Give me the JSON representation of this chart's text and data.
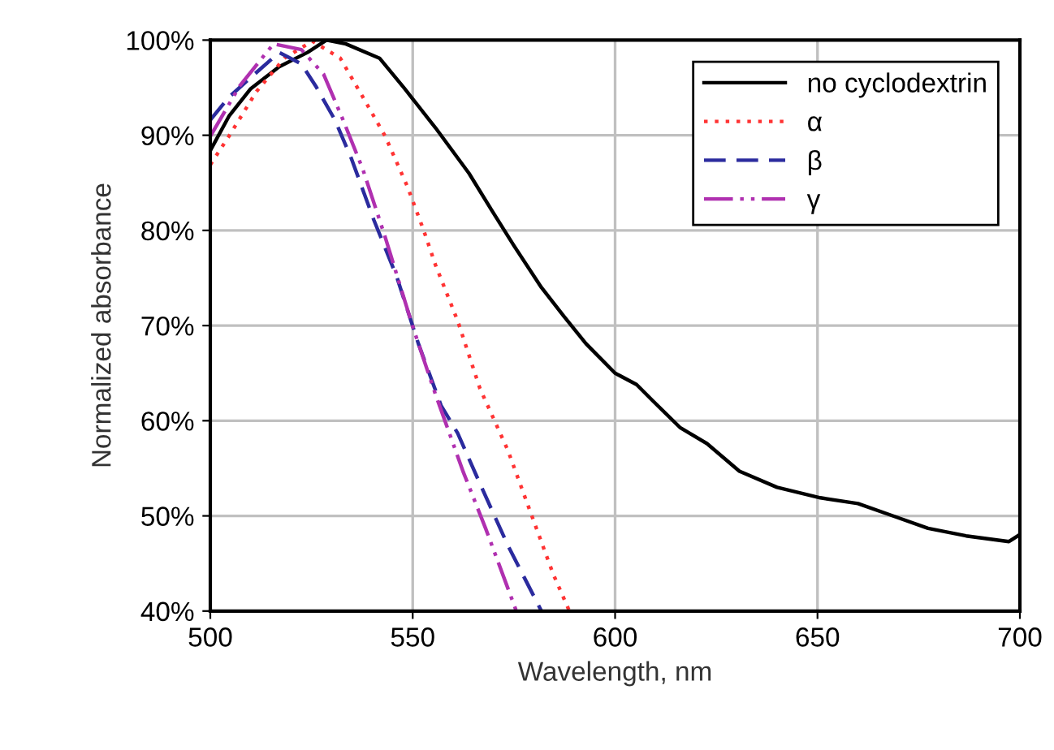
{
  "chart_data": {
    "type": "line",
    "xlabel": "Wavelength, nm",
    "ylabel": "Normalized absorbance",
    "xlim": [
      500,
      700
    ],
    "xticks": [
      500,
      550,
      600,
      650,
      700
    ],
    "ylim": [
      40,
      100
    ],
    "yticks": [
      {
        "value": 40,
        "label": "40%"
      },
      {
        "value": 50,
        "label": "50%"
      },
      {
        "value": 60,
        "label": "60%"
      },
      {
        "value": 70,
        "label": "70%"
      },
      {
        "value": 80,
        "label": "80%"
      },
      {
        "value": 90,
        "label": "90%"
      },
      {
        "value": 100,
        "label": "100%"
      }
    ],
    "grid": true,
    "legend": "top right",
    "series": [
      {
        "name": "no cyclodextrin",
        "color": "#000000",
        "line_style": "solid",
        "x": [
          500,
          504.6,
          510,
          517,
          524,
          528.7,
          533.5,
          541.8,
          548,
          555.6,
          563.9,
          569.4,
          575,
          581.8,
          587.3,
          592.8,
          600,
          605.3,
          609.3,
          616,
          622.7,
          630.7,
          640,
          650.7,
          660,
          669.3,
          677.3,
          686.7,
          697.3,
          699.5
        ],
        "values": [
          88.4,
          92,
          94.9,
          97.2,
          98.7,
          100,
          99.6,
          98.1,
          94.9,
          90.8,
          86,
          82.2,
          78.4,
          74,
          71,
          68.1,
          65,
          63.8,
          62.1,
          59.3,
          57.6,
          54.7,
          53,
          51.9,
          51.3,
          49.9,
          48.7,
          47.9,
          47.3,
          47.9
        ]
      },
      {
        "name": "α",
        "color": "#ff3333",
        "line_style": "dotted",
        "x": [
          500,
          504.6,
          511.4,
          518.3,
          525.2,
          532.1,
          537.7,
          543.2,
          548.7,
          552.8,
          555.6,
          561.1,
          566.6,
          573.5,
          579,
          584.6,
          588.7
        ],
        "values": [
          86.9,
          89.9,
          94.6,
          98.1,
          99.9,
          98.1,
          94,
          89.9,
          84.6,
          79.9,
          76.4,
          70.5,
          63.4,
          56.9,
          50.5,
          44,
          40
        ]
      },
      {
        "name": "β",
        "color": "#2b2b9e",
        "line_style": "dashed",
        "x": [
          500,
          504.6,
          511.4,
          517,
          522.5,
          526,
          530.8,
          534.9,
          540.4,
          546,
          551.4,
          557,
          561.1,
          566.6,
          573.5,
          581.8
        ],
        "values": [
          91.6,
          94,
          96.6,
          98.7,
          97.5,
          95.2,
          91.6,
          87.5,
          81.1,
          75.2,
          68.1,
          61.6,
          58.7,
          53.4,
          46.9,
          40
        ]
      },
      {
        "name": "γ",
        "color": "#b030b0",
        "line_style": "dashdot",
        "x": [
          500,
          507.3,
          515.6,
          522.5,
          528,
          532.8,
          537.7,
          543.2,
          550,
          555.6,
          562.5,
          568,
          575.6
        ],
        "values": [
          89.9,
          95.2,
          99.6,
          99,
          96.4,
          91.6,
          86.4,
          79.3,
          69.9,
          62.8,
          54.6,
          48.7,
          40
        ]
      }
    ]
  }
}
